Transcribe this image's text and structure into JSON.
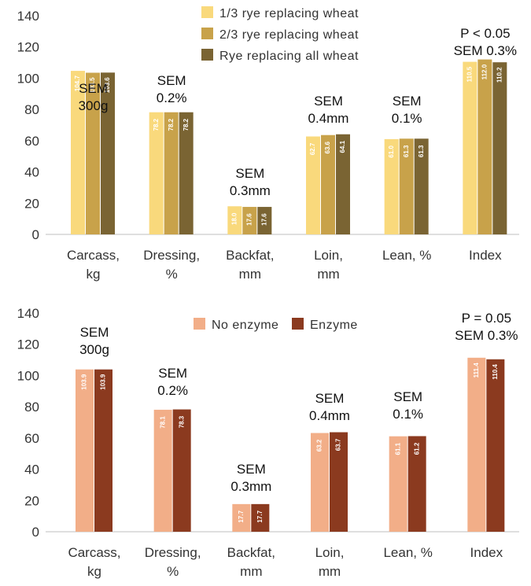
{
  "chart_data": [
    {
      "type": "bar",
      "categories": [
        "Carcass,\nkg",
        "Dressing,\n%",
        "Backfat,\nmm",
        "Loin,\nmm",
        "Lean, %",
        "Index"
      ],
      "series": [
        {
          "name": "1/3 rye replacing wheat",
          "color": "#f9d97c",
          "values": [
            104.7,
            78.2,
            18.0,
            62.7,
            61.0,
            110.5
          ]
        },
        {
          "name": "2/3 rye replacing wheat",
          "color": "#c8a24a",
          "values": [
            103.5,
            78.2,
            17.6,
            63.6,
            61.3,
            112.0
          ]
        },
        {
          "name": "Rye replacing all wheat",
          "color": "#7a6433",
          "values": [
            103.6,
            78.2,
            17.6,
            64.1,
            61.3,
            110.2
          ]
        }
      ],
      "data_labels": [
        [
          "104.7",
          "103.5",
          "103.6"
        ],
        [
          "78.2",
          "78.2",
          "78.2"
        ],
        [
          "18.0",
          "17.6",
          "17.6"
        ],
        [
          "62.7",
          "63.6",
          "64.1"
        ],
        [
          "61.0",
          "61.3",
          "61.3"
        ],
        [
          "110.5",
          "112.0",
          "110.2"
        ]
      ],
      "annotations": [
        [
          "SEM",
          "300g"
        ],
        [
          "SEM",
          "0.2%"
        ],
        [
          "SEM",
          "0.3mm"
        ],
        [
          "SEM",
          "0.4mm"
        ],
        [
          "SEM",
          "0.1%"
        ],
        [
          "P < 0.05",
          "SEM 0.3%"
        ]
      ],
      "ylim": [
        0,
        140
      ],
      "yticks": [
        "0",
        "20",
        "40",
        "60",
        "80",
        "100",
        "120",
        "140"
      ],
      "legend": "top-center",
      "grid": false
    },
    {
      "type": "bar",
      "categories": [
        "Carcass,\nkg",
        "Dressing,\n%",
        "Backfat,\nmm",
        "Loin,\nmm",
        "Lean, %",
        "Index"
      ],
      "series": [
        {
          "name": "No enzyme",
          "color": "#f2ae88",
          "values": [
            103.9,
            78.1,
            17.7,
            63.2,
            61.1,
            111.4
          ]
        },
        {
          "name": "Enzyme",
          "color": "#8b3a1f",
          "values": [
            103.9,
            78.3,
            17.7,
            63.7,
            61.2,
            110.4
          ]
        }
      ],
      "data_labels": [
        [
          "103.9",
          "103.9"
        ],
        [
          "78.1",
          "78.3"
        ],
        [
          "17.7",
          "17.7"
        ],
        [
          "63.2",
          "63.7"
        ],
        [
          "61.1",
          "61.2"
        ],
        [
          "111.4",
          "110.4"
        ]
      ],
      "annotations": [
        [
          "SEM",
          "300g"
        ],
        [
          "SEM",
          "0.2%"
        ],
        [
          "SEM",
          "0.3mm"
        ],
        [
          "SEM",
          "0.4mm"
        ],
        [
          "SEM",
          "0.1%"
        ],
        [
          "P = 0.05",
          "SEM 0.3%"
        ]
      ],
      "ylim": [
        0,
        140
      ],
      "yticks": [
        "0",
        "20",
        "40",
        "60",
        "80",
        "100",
        "120",
        "140"
      ],
      "legend": "top-center",
      "grid": false
    }
  ]
}
